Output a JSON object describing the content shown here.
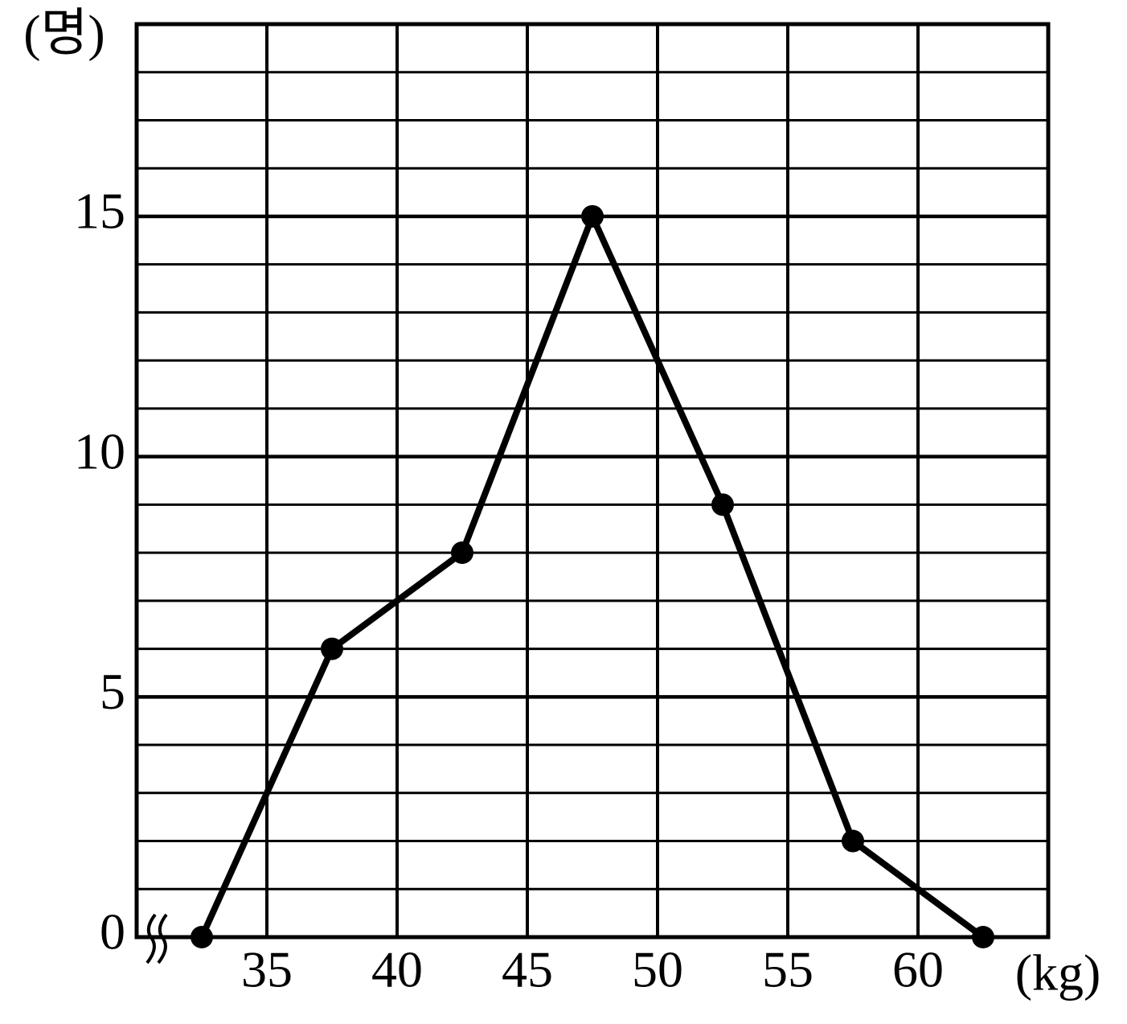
{
  "chart_data": {
    "type": "line",
    "y_label": "(명)",
    "x_label": "(kg)",
    "x": [
      32.5,
      37.5,
      42.5,
      47.5,
      52.5,
      57.5,
      62.5
    ],
    "values": [
      0,
      6,
      8,
      15,
      9,
      2,
      0
    ],
    "color": "#000000",
    "xlim": [
      30,
      65
    ],
    "xticks": [
      35,
      40,
      45,
      50,
      55,
      60
    ],
    "ylim": [
      0,
      19
    ],
    "yticks": [
      0,
      5,
      10,
      15
    ],
    "grid": true
  }
}
